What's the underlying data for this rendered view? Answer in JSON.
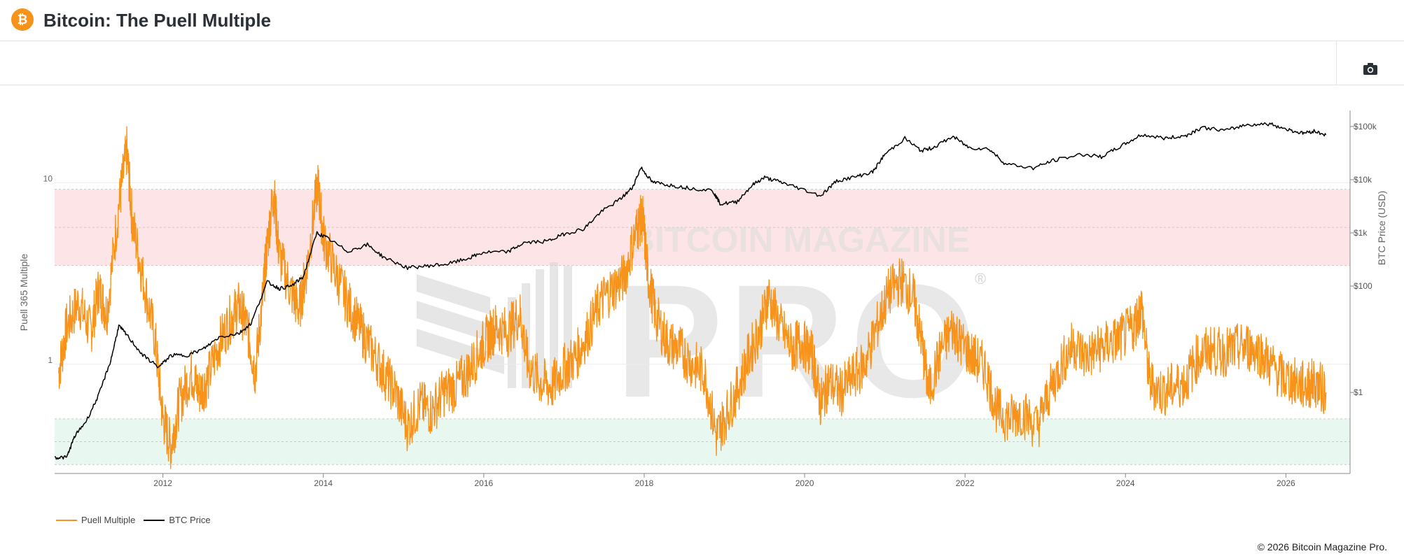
{
  "header": {
    "title": "Bitcoin: The Puell Multiple",
    "logo_glyph": "₿",
    "logo_color": "#f7931a"
  },
  "toolbar": {
    "camera_icon": "camera-icon"
  },
  "watermark": {
    "line1": "BITCOIN MAGAZINE",
    "line2": "PRO",
    "mark": "®"
  },
  "footer": {
    "copyright": "© 2026 Bitcoin Magazine Pro."
  },
  "chart_data": {
    "type": "line",
    "title": "",
    "y_left": {
      "label": "Puell 365 Multiple",
      "scale": "log",
      "ticks": [
        1,
        10
      ],
      "tick_labels": [
        "1",
        "10"
      ],
      "range": [
        0.25,
        25
      ]
    },
    "y_right": {
      "label": "BTC Price (USD)",
      "scale": "log",
      "ticks": [
        1,
        100,
        1000,
        10000,
        100000
      ],
      "tick_labels": [
        "$1",
        "$100",
        "$1k",
        "$10k",
        "$100k"
      ],
      "range": [
        0.03,
        200000
      ]
    },
    "x": {
      "ticks": [
        2012,
        2014,
        2016,
        2018,
        2020,
        2022,
        2024,
        2026
      ],
      "tick_labels": [
        "2012",
        "2014",
        "2016",
        "2018",
        "2020",
        "2022",
        "2024",
        "2026"
      ],
      "range": [
        2010.65,
        2026.8
      ]
    },
    "bands": [
      {
        "name": "sell-zone",
        "from": 3.5,
        "to": 9.2,
        "color": "#fde5e7"
      },
      {
        "name": "buy-zone",
        "from": 0.28,
        "to": 0.5,
        "color": "#e8f8f0"
      }
    ],
    "series": [
      {
        "name": "Puell Multiple",
        "color": "#f7931a",
        "axis": "left",
        "points": [
          [
            2010.7,
            0.9
          ],
          [
            2010.8,
            1.6
          ],
          [
            2010.95,
            2.2
          ],
          [
            2011.1,
            1.5
          ],
          [
            2011.2,
            2.6
          ],
          [
            2011.3,
            1.9
          ],
          [
            2011.45,
            7.5
          ],
          [
            2011.55,
            15.0
          ],
          [
            2011.62,
            6.0
          ],
          [
            2011.75,
            3.0
          ],
          [
            2011.9,
            1.4
          ],
          [
            2012.0,
            0.5
          ],
          [
            2012.1,
            0.35
          ],
          [
            2012.2,
            0.6
          ],
          [
            2012.35,
            0.9
          ],
          [
            2012.45,
            0.7
          ],
          [
            2012.55,
            0.8
          ],
          [
            2012.7,
            1.3
          ],
          [
            2012.85,
            1.8
          ],
          [
            2012.95,
            2.1
          ],
          [
            2013.05,
            1.6
          ],
          [
            2013.15,
            0.9
          ],
          [
            2013.25,
            2.5
          ],
          [
            2013.3,
            4.5
          ],
          [
            2013.38,
            9.0
          ],
          [
            2013.45,
            4.0
          ],
          [
            2013.6,
            2.5
          ],
          [
            2013.7,
            2.0
          ],
          [
            2013.8,
            3.5
          ],
          [
            2013.93,
            10.0
          ],
          [
            2014.0,
            5.0
          ],
          [
            2014.15,
            3.2
          ],
          [
            2014.3,
            2.2
          ],
          [
            2014.45,
            1.6
          ],
          [
            2014.6,
            1.2
          ],
          [
            2014.75,
            0.9
          ],
          [
            2014.9,
            0.7
          ],
          [
            2015.05,
            0.45
          ],
          [
            2015.2,
            0.6
          ],
          [
            2015.35,
            0.55
          ],
          [
            2015.5,
            0.7
          ],
          [
            2015.65,
            0.75
          ],
          [
            2015.8,
            0.9
          ],
          [
            2015.95,
            1.2
          ],
          [
            2016.05,
            1.4
          ],
          [
            2016.15,
            1.6
          ],
          [
            2016.3,
            1.5
          ],
          [
            2016.45,
            1.9
          ],
          [
            2016.55,
            1.0
          ],
          [
            2016.7,
            0.8
          ],
          [
            2016.85,
            0.75
          ],
          [
            2017.0,
            0.95
          ],
          [
            2017.15,
            1.1
          ],
          [
            2017.3,
            1.5
          ],
          [
            2017.45,
            2.2
          ],
          [
            2017.6,
            2.6
          ],
          [
            2017.75,
            3.0
          ],
          [
            2017.9,
            5.5
          ],
          [
            2017.98,
            6.5
          ],
          [
            2018.05,
            3.0
          ],
          [
            2018.15,
            1.8
          ],
          [
            2018.3,
            1.3
          ],
          [
            2018.45,
            1.2
          ],
          [
            2018.6,
            1.0
          ],
          [
            2018.75,
            0.9
          ],
          [
            2018.9,
            0.4
          ],
          [
            2019.0,
            0.5
          ],
          [
            2019.15,
            0.7
          ],
          [
            2019.3,
            1.1
          ],
          [
            2019.45,
            1.6
          ],
          [
            2019.55,
            2.4
          ],
          [
            2019.7,
            1.6
          ],
          [
            2019.85,
            1.2
          ],
          [
            2019.95,
            1.35
          ],
          [
            2020.1,
            1.1
          ],
          [
            2020.2,
            0.6
          ],
          [
            2020.3,
            0.8
          ],
          [
            2020.45,
            0.7
          ],
          [
            2020.6,
            0.85
          ],
          [
            2020.75,
            1.0
          ],
          [
            2020.9,
            1.6
          ],
          [
            2021.05,
            2.5
          ],
          [
            2021.2,
            2.9
          ],
          [
            2021.35,
            2.4
          ],
          [
            2021.45,
            1.4
          ],
          [
            2021.55,
            0.7
          ],
          [
            2021.7,
            1.2
          ],
          [
            2021.85,
            1.6
          ],
          [
            2021.95,
            1.3
          ],
          [
            2022.1,
            1.1
          ],
          [
            2022.25,
            0.95
          ],
          [
            2022.4,
            0.55
          ],
          [
            2022.55,
            0.5
          ],
          [
            2022.7,
            0.55
          ],
          [
            2022.9,
            0.45
          ],
          [
            2023.05,
            0.7
          ],
          [
            2023.2,
            1.0
          ],
          [
            2023.35,
            1.3
          ],
          [
            2023.5,
            1.1
          ],
          [
            2023.65,
            1.2
          ],
          [
            2023.8,
            1.3
          ],
          [
            2023.95,
            1.4
          ],
          [
            2024.1,
            1.6
          ],
          [
            2024.2,
            2.1
          ],
          [
            2024.3,
            0.8
          ],
          [
            2024.45,
            0.7
          ],
          [
            2024.6,
            0.75
          ],
          [
            2024.75,
            0.8
          ],
          [
            2024.9,
            1.1
          ],
          [
            2025.05,
            1.2
          ],
          [
            2025.2,
            1.15
          ],
          [
            2025.35,
            1.2
          ],
          [
            2025.5,
            1.25
          ],
          [
            2025.65,
            1.2
          ],
          [
            2025.8,
            1.0
          ],
          [
            2025.95,
            0.85
          ],
          [
            2026.1,
            0.8
          ],
          [
            2026.25,
            0.75
          ],
          [
            2026.35,
            0.8
          ],
          [
            2026.5,
            0.7
          ]
        ]
      },
      {
        "name": "BTC Price",
        "color": "#000000",
        "axis": "right",
        "points": [
          [
            2010.65,
            0.06
          ],
          [
            2010.8,
            0.06
          ],
          [
            2010.9,
            0.15
          ],
          [
            2011.05,
            0.3
          ],
          [
            2011.2,
            0.9
          ],
          [
            2011.35,
            4.0
          ],
          [
            2011.45,
            18.0
          ],
          [
            2011.55,
            12.0
          ],
          [
            2011.75,
            5.0
          ],
          [
            2011.95,
            3.0
          ],
          [
            2012.1,
            5.0
          ],
          [
            2012.3,
            5.0
          ],
          [
            2012.5,
            6.5
          ],
          [
            2012.7,
            11.0
          ],
          [
            2012.95,
            13.0
          ],
          [
            2013.1,
            20.0
          ],
          [
            2013.3,
            120.0
          ],
          [
            2013.45,
            90.0
          ],
          [
            2013.6,
            100.0
          ],
          [
            2013.75,
            150.0
          ],
          [
            2013.92,
            1000.0
          ],
          [
            2014.05,
            800.0
          ],
          [
            2014.3,
            450.0
          ],
          [
            2014.55,
            600.0
          ],
          [
            2014.75,
            350.0
          ],
          [
            2015.05,
            220.0
          ],
          [
            2015.3,
            240.0
          ],
          [
            2015.55,
            260.0
          ],
          [
            2015.8,
            330.0
          ],
          [
            2016.0,
            430.0
          ],
          [
            2016.3,
            440.0
          ],
          [
            2016.5,
            650.0
          ],
          [
            2016.8,
            700.0
          ],
          [
            2017.0,
            950.0
          ],
          [
            2017.25,
            1200.0
          ],
          [
            2017.45,
            2400.0
          ],
          [
            2017.7,
            4300.0
          ],
          [
            2017.85,
            7000.0
          ],
          [
            2017.96,
            17000.0
          ],
          [
            2018.1,
            9000.0
          ],
          [
            2018.3,
            8000.0
          ],
          [
            2018.55,
            7000.0
          ],
          [
            2018.85,
            6300.0
          ],
          [
            2018.95,
            3500.0
          ],
          [
            2019.15,
            3800.0
          ],
          [
            2019.35,
            8000.0
          ],
          [
            2019.5,
            11000.0
          ],
          [
            2019.7,
            9000.0
          ],
          [
            2019.9,
            7200.0
          ],
          [
            2020.2,
            5000.0
          ],
          [
            2020.4,
            9500.0
          ],
          [
            2020.65,
            11500.0
          ],
          [
            2020.85,
            14000.0
          ],
          [
            2021.0,
            30000.0
          ],
          [
            2021.25,
            60000.0
          ],
          [
            2021.45,
            35000.0
          ],
          [
            2021.6,
            40000.0
          ],
          [
            2021.85,
            65000.0
          ],
          [
            2022.05,
            40000.0
          ],
          [
            2022.3,
            38000.0
          ],
          [
            2022.5,
            20000.0
          ],
          [
            2022.85,
            16500.0
          ],
          [
            2023.1,
            23000.0
          ],
          [
            2023.45,
            30000.0
          ],
          [
            2023.7,
            27000.0
          ],
          [
            2023.95,
            43000.0
          ],
          [
            2024.2,
            70000.0
          ],
          [
            2024.5,
            60000.0
          ],
          [
            2024.75,
            67000.0
          ],
          [
            2024.95,
            96000.0
          ],
          [
            2025.25,
            84000.0
          ],
          [
            2025.5,
            108000.0
          ],
          [
            2025.8,
            112000.0
          ],
          [
            2026.0,
            90000.0
          ],
          [
            2026.2,
            75000.0
          ],
          [
            2026.35,
            82000.0
          ],
          [
            2026.5,
            70000.0
          ]
        ]
      }
    ],
    "legend": {
      "position": "bottom-left"
    }
  }
}
